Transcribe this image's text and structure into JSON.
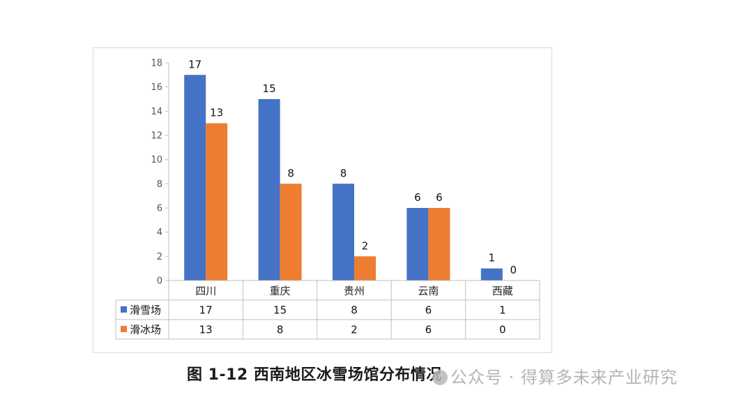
{
  "caption": "图 1-12 西南地区冰雪场馆分布情况",
  "watermark": "公众号 · 得算多未来产业研究",
  "chart_data": {
    "type": "bar",
    "categories": [
      "四川",
      "重庆",
      "贵州",
      "云南",
      "西藏"
    ],
    "series": [
      {
        "name": "滑雪场",
        "values": [
          17,
          15,
          8,
          6,
          1
        ],
        "color": "#4472c4"
      },
      {
        "name": "滑冰场",
        "values": [
          13,
          8,
          2,
          6,
          0
        ],
        "color": "#ed7d31"
      }
    ],
    "ylim": [
      0,
      18
    ],
    "yticks": [
      0,
      2,
      4,
      6,
      8,
      10,
      12,
      14,
      16,
      18
    ],
    "data_table": true,
    "grid": false
  }
}
